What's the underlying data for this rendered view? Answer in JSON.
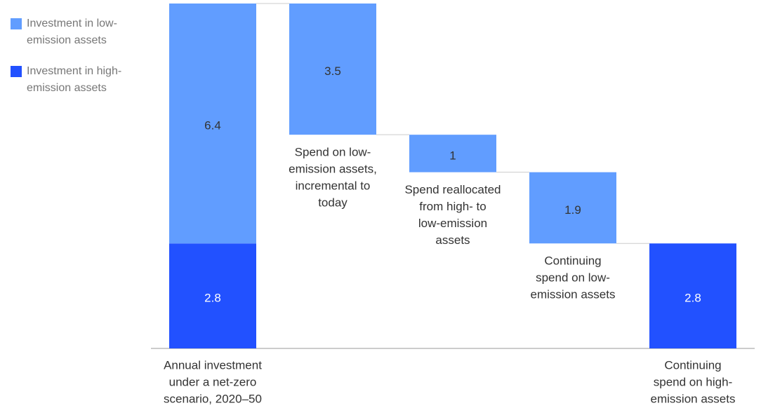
{
  "chart_data": {
    "type": "waterfall",
    "categories": [
      [
        "Annual investment",
        "under a net-zero",
        "scenario, 2020–50"
      ],
      [
        "Spend on low-",
        "emission assets,",
        "incremental to",
        "today"
      ],
      [
        "Spend reallocated",
        "from high- to",
        "low-emission",
        "assets"
      ],
      [
        "Continuing",
        "spend on low-",
        "emission assets"
      ],
      [
        "Continuing",
        "spend on high-",
        "emission assets"
      ]
    ],
    "series": [
      {
        "name": "Investment in low-emission assets",
        "color": "#619dff",
        "values": [
          6.4,
          3.5,
          1.0,
          1.9,
          null
        ]
      },
      {
        "name": "Investment in high-emission assets",
        "color": "#2251ff",
        "values": [
          2.8,
          null,
          null,
          null,
          2.8
        ]
      }
    ]
  }
}
